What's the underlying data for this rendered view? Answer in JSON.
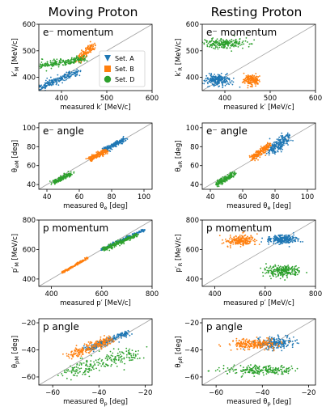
{
  "column_titles": [
    "Moving Proton",
    "Resting Proton"
  ],
  "colors": {
    "Set. A": "#1f77b4",
    "Set. B": "#ff7f0e",
    "Set. D": "#2ca02c",
    "diagonal": "#a0a0a0"
  },
  "legend": {
    "location": "lower-right of top-left panel",
    "entries": [
      {
        "label": "Set. A",
        "marker": "triangle-down"
      },
      {
        "label": "Set. B",
        "marker": "square"
      },
      {
        "label": "Set. D",
        "marker": "circle"
      }
    ]
  },
  "chart_data": [
    {
      "type": "scatter",
      "title": "e⁻ momentum",
      "column": "Moving Proton",
      "xlabel": "measured k′ [MeV/c]",
      "ylabel": "k′_M [MeV/c]",
      "xlim": [
        350,
        600
      ],
      "ylim": [
        350,
        600
      ],
      "xticks": [
        400,
        500,
        600
      ],
      "yticks": [
        400,
        500,
        600
      ],
      "diagonal": true,
      "series": [
        {
          "name": "Set. A",
          "segment": {
            "x": [
              350,
              435
            ],
            "y": [
              360,
              420
            ]
          },
          "spread": [
            5,
            6
          ],
          "points": 220
        },
        {
          "name": "Set. B",
          "segment": {
            "x": [
              435,
              470
            ],
            "y": [
              460,
              522
            ]
          },
          "spread": [
            4,
            6
          ],
          "points": 150
        },
        {
          "name": "Set. D",
          "segment": {
            "x": [
              355,
              450
            ],
            "y": [
              445,
              470
            ]
          },
          "spread": [
            8,
            7
          ],
          "points": 200
        }
      ]
    },
    {
      "type": "scatter",
      "title": "e⁻ momentum",
      "column": "Resting Proton",
      "xlabel": "measured k′ [MeV/c]",
      "ylabel": "k′_R [MeV/c]",
      "xlim": [
        350,
        600
      ],
      "ylim": [
        350,
        600
      ],
      "xticks": [
        400,
        500,
        600
      ],
      "yticks": [
        400,
        500,
        600
      ],
      "diagonal": true,
      "series": [
        {
          "name": "Set. A",
          "cloud": {
            "x": 385,
            "y": 390
          },
          "spread": [
            14,
            11
          ],
          "points": 240
        },
        {
          "name": "Set. B",
          "cloud": {
            "x": 458,
            "y": 392
          },
          "spread": [
            9,
            10
          ],
          "points": 180
        },
        {
          "name": "Set. D",
          "cloud": {
            "x": 400,
            "y": 528
          },
          "spread": [
            25,
            9
          ],
          "points": 220
        }
      ]
    },
    {
      "type": "scatter",
      "title": "e⁻ angle",
      "column": "Moving Proton",
      "xlabel": "measured θ_e [deg]",
      "ylabel": "θ_eM [deg]",
      "xlim": [
        35,
        105
      ],
      "ylim": [
        35,
        105
      ],
      "xticks": [
        40,
        60,
        80,
        100
      ],
      "yticks": [
        40,
        60,
        80,
        100
      ],
      "diagonal": true,
      "series": [
        {
          "name": "Set. A",
          "segment": {
            "x": [
              75,
              88
            ],
            "y": [
              76,
              88
            ]
          },
          "spread": [
            1,
            1
          ],
          "points": 200
        },
        {
          "name": "Set. B",
          "segment": {
            "x": [
              66,
              77
            ],
            "y": [
              66,
              76
            ]
          },
          "spread": [
            1,
            1.2
          ],
          "points": 180
        },
        {
          "name": "Set. D",
          "segment": {
            "x": [
              44,
              55
            ],
            "y": [
              42,
              52
            ]
          },
          "spread": [
            1,
            1
          ],
          "points": 160
        }
      ]
    },
    {
      "type": "scatter",
      "title": "e⁻ angle",
      "column": "Resting Proton",
      "xlabel": "measured θ_e [deg]",
      "ylabel": "θ_eR [deg]",
      "xlim": [
        35,
        105
      ],
      "ylim": [
        35,
        105
      ],
      "xticks": [
        40,
        60,
        80,
        100
      ],
      "yticks": [
        40,
        60,
        80,
        100
      ],
      "diagonal": true,
      "series": [
        {
          "name": "Set. A",
          "segment": {
            "x": [
              76,
              88
            ],
            "y": [
              75,
              90
            ]
          },
          "spread": [
            1.5,
            3
          ],
          "points": 220
        },
        {
          "name": "Set. B",
          "segment": {
            "x": [
              65,
              77
            ],
            "y": [
              67,
              82
            ]
          },
          "spread": [
            1,
            1.5
          ],
          "points": 200
        },
        {
          "name": "Set. D",
          "segment": {
            "x": [
              44,
              55
            ],
            "y": [
              40,
              52
            ]
          },
          "spread": [
            1,
            1.5
          ],
          "points": 160
        }
      ]
    },
    {
      "type": "scatter",
      "title": "p momentum",
      "column": "Moving Proton",
      "xlabel": "measured p′ [MeV/c]",
      "ylabel": "p′_M [MeV/c]",
      "xlim": [
        350,
        800
      ],
      "ylim": [
        350,
        800
      ],
      "xticks": [
        400,
        600,
        800
      ],
      "yticks": [
        400,
        600,
        800
      ],
      "diagonal": true,
      "series": [
        {
          "name": "Set. A",
          "segment": {
            "x": [
              600,
              770
            ],
            "y": [
              600,
              735
            ]
          },
          "spread": [
            3,
            4
          ],
          "points": 240
        },
        {
          "name": "Set. B",
          "segment": {
            "x": [
              440,
              545
            ],
            "y": [
              440,
              545
            ]
          },
          "spread": [
            2,
            3
          ],
          "points": 180
        },
        {
          "name": "Set. D",
          "segment": {
            "x": [
              605,
              740
            ],
            "y": [
              600,
              700
            ]
          },
          "spread": [
            4,
            7
          ],
          "points": 220
        }
      ]
    },
    {
      "type": "scatter",
      "title": "p momentum",
      "column": "Resting Proton",
      "xlabel": "measured p′ [MeV/c]",
      "ylabel": "p′_R [MeV/c]",
      "xlim": [
        350,
        800
      ],
      "ylim": [
        350,
        800
      ],
      "xticks": [
        400,
        600,
        800
      ],
      "yticks": [
        400,
        600,
        800
      ],
      "diagonal": true,
      "series": [
        {
          "name": "Set. A",
          "cloud": {
            "x": 668,
            "y": 670
          },
          "spread": [
            30,
            14
          ],
          "points": 240
        },
        {
          "name": "Set. B",
          "cloud": {
            "x": 500,
            "y": 660
          },
          "spread": [
            28,
            18
          ],
          "points": 200
        },
        {
          "name": "Set. D",
          "cloud": {
            "x": 670,
            "y": 455
          },
          "spread": [
            35,
            20
          ],
          "points": 220
        }
      ]
    },
    {
      "type": "scatter",
      "title": "p angle",
      "column": "Moving Proton",
      "xlabel": "measured θ_p [deg]",
      "ylabel": "θ_pM [deg]",
      "xlim": [
        -66,
        -17
      ],
      "ylim": [
        -66,
        -17
      ],
      "xticks": [
        -60,
        -40,
        -20
      ],
      "yticks": [
        -60,
        -40,
        -20
      ],
      "diagonal": true,
      "series": [
        {
          "name": "Set. A",
          "segment": {
            "x": [
              -45,
              -27
            ],
            "y": [
              -40,
              -27
            ]
          },
          "spread": [
            1,
            1
          ],
          "points": 220
        },
        {
          "name": "Set. B",
          "segment": {
            "x": [
              -52,
              -35
            ],
            "y": [
              -44,
              -32
            ]
          },
          "spread": [
            1.5,
            1.5
          ],
          "points": 200
        },
        {
          "name": "Set. D",
          "segment": {
            "x": [
              -55,
              -24
            ],
            "y": [
              -58,
              -42
            ]
          },
          "spread": [
            2.5,
            3
          ],
          "points": 220
        }
      ]
    },
    {
      "type": "scatter",
      "title": "p angle",
      "column": "Resting Proton",
      "xlabel": "measured θ_p [deg]",
      "ylabel": "θ_pR [deg]",
      "xlim": [
        -66,
        -17
      ],
      "ylim": [
        -66,
        -17
      ],
      "xticks": [
        -60,
        -40,
        -20
      ],
      "yticks": [
        -60,
        -40,
        -20
      ],
      "diagonal": true,
      "series": [
        {
          "name": "Set. A",
          "cloud": {
            "x": -34,
            "y": -35
          },
          "spread": [
            4,
            2
          ],
          "points": 220
        },
        {
          "name": "Set. B",
          "cloud": {
            "x": -43,
            "y": -36
          },
          "spread": [
            5,
            2
          ],
          "points": 220
        },
        {
          "name": "Set. D",
          "cloud": {
            "x": -41,
            "y": -55
          },
          "spread": [
            8,
            1.8
          ],
          "points": 220
        }
      ]
    }
  ]
}
